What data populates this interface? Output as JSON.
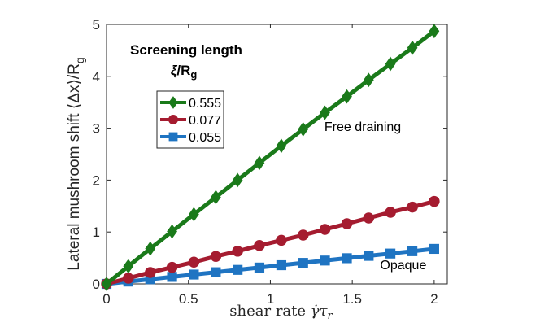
{
  "chart_data": {
    "type": "line",
    "title": "",
    "xlabel_prefix": "shear rate ",
    "xlabel_symbol": "γ̇τ",
    "xlabel_sub": "r",
    "ylabel": "Lateral mushroom shift ⟨Δx⟩/R",
    "ylabel_sub": "g",
    "xlim": [
      0,
      2.08
    ],
    "ylim": [
      0,
      5
    ],
    "xticks": [
      0,
      0.5,
      1,
      1.5,
      2
    ],
    "xtick_labels": [
      "0",
      "0.5",
      "1",
      "1.5",
      "2"
    ],
    "yticks": [
      0,
      1,
      2,
      3,
      4,
      5
    ],
    "ytick_labels": [
      "0",
      "1",
      "2",
      "3",
      "4",
      "5"
    ],
    "grid": false,
    "legend": {
      "title_line1": "Screening length",
      "title_line2_italic": "ξ",
      "title_line2_rest": "/R",
      "title_line2_sub": "g",
      "placement": "top-left"
    },
    "x": [
      0,
      0.133,
      0.267,
      0.4,
      0.533,
      0.667,
      0.8,
      0.933,
      1.067,
      1.2,
      1.333,
      1.467,
      1.6,
      1.733,
      1.867,
      2.0
    ],
    "series": [
      {
        "name": "0.555",
        "color": "#1a7a1a",
        "marker": "diamond",
        "values": [
          0,
          0.34,
          0.68,
          1.01,
          1.34,
          1.67,
          2.0,
          2.33,
          2.66,
          2.98,
          3.3,
          3.61,
          3.93,
          4.24,
          4.55,
          4.87
        ]
      },
      {
        "name": "0.077",
        "color": "#a51c30",
        "marker": "circle",
        "values": [
          0,
          0.11,
          0.22,
          0.32,
          0.42,
          0.53,
          0.63,
          0.74,
          0.84,
          0.94,
          1.05,
          1.16,
          1.27,
          1.38,
          1.48,
          1.59
        ]
      },
      {
        "name": "0.055",
        "color": "#1f74c2",
        "marker": "square",
        "values": [
          0,
          0.045,
          0.09,
          0.135,
          0.18,
          0.225,
          0.27,
          0.315,
          0.36,
          0.405,
          0.45,
          0.495,
          0.54,
          0.585,
          0.63,
          0.675
        ]
      }
    ],
    "annotations": [
      {
        "text": "Free draining",
        "x": 1.33,
        "y": 2.95
      },
      {
        "text": "Opaque",
        "x": 1.67,
        "y": 0.28
      }
    ]
  }
}
